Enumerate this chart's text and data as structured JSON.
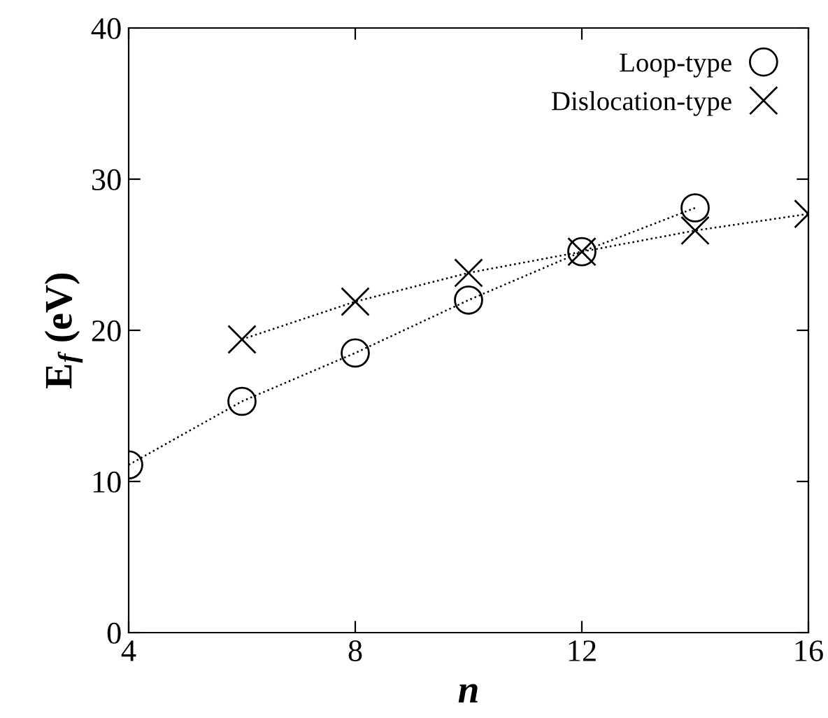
{
  "chart_data": {
    "type": "line",
    "xlabel": "n",
    "ylabel": "E$_{f}$ (eV)",
    "xlim": [
      4,
      16
    ],
    "xticks": [
      4,
      8,
      12,
      16
    ],
    "ylim": [
      0,
      40
    ],
    "yticks": [
      0,
      10,
      20,
      30,
      40
    ],
    "grid": false,
    "legend": "top right",
    "line_style": "dotted",
    "series": [
      {
        "name": "Loop-type",
        "color": "#000000",
        "marker": "circle",
        "x": [
          4,
          6,
          8,
          10,
          12,
          14
        ],
        "values": [
          11.1,
          15.3,
          18.5,
          22.0,
          25.2,
          28.1
        ]
      },
      {
        "name": "Dislocation-type",
        "color": "#000000",
        "marker": "cross",
        "x": [
          6,
          8,
          10,
          12,
          14,
          16
        ],
        "values": [
          19.4,
          21.9,
          23.8,
          25.2,
          26.6,
          27.7
        ]
      }
    ]
  }
}
